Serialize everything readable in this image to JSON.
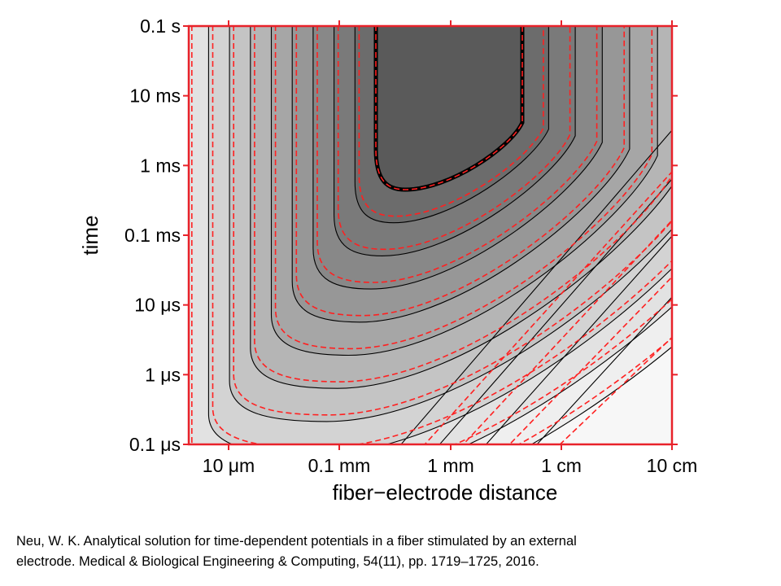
{
  "chart_data": {
    "type": "heatmap",
    "title": "",
    "xlabel": "fiber−electrode distance",
    "ylabel": "time",
    "x_scale": "log",
    "y_scale": "log",
    "xlim": [
      "3.2 μm",
      "10 cm"
    ],
    "ylim": [
      "0.1 μs",
      "0.1 s"
    ],
    "x_ticks": [
      "10 μm",
      "0.1 mm",
      "1 mm",
      "1 cm",
      "10 cm"
    ],
    "y_ticks": [
      "0.1 μs",
      "1 μs",
      "10 μs",
      "0.1 ms",
      "1 ms",
      "10 ms",
      "0.1 s"
    ],
    "grid": false,
    "legend": "none",
    "colors": {
      "frame": "#e8222a",
      "tick": "#e8222a",
      "contour_solid": "#000000",
      "contour_dashed": "#ff2020",
      "fills": [
        "#f7f7f7",
        "#efefef",
        "#e2e2e2",
        "#d3d3d3",
        "#c4c4c4",
        "#b5b5b5",
        "#a6a6a6",
        "#979797",
        "#888888",
        "#7a7a7a",
        "#6c6c6c",
        "#5a5a5a"
      ]
    }
  },
  "citation": {
    "line1": "Neu, W. K. Analytical solution for time-dependent  potentials in a fiber stimulated by an external",
    "line2": "electrode.  Medical & Biological Engineering & Computing, 54(11), pp. 1719–1725, 2016."
  }
}
